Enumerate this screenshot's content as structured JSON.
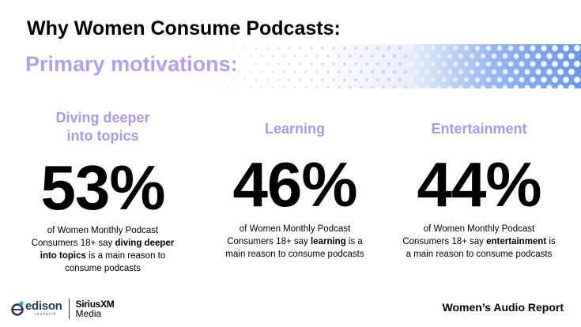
{
  "header": {
    "title": "Why Women Consume Podcasts:",
    "subtitle": "Primary motivations:"
  },
  "colors": {
    "accent_purple": "#a996ee",
    "band_blue": "#5f91eb",
    "text": "#000000"
  },
  "stats": [
    {
      "heading_line1": "Diving deeper",
      "heading_line2": "into topics",
      "value": "53%",
      "desc_pre_line1": "of Women Monthly Podcast",
      "desc_pre_line2": "Consumers 18+ say ",
      "desc_bold_line2": "diving deeper",
      "desc_bold_line3": "into topics",
      "desc_post_line3": " is a main reason to",
      "desc_line4": "consume podcasts"
    },
    {
      "heading": "Learning",
      "value": "46%",
      "desc_line1": "of Women Monthly Podcast",
      "desc_pre_line2": "Consumers 18+ say ",
      "desc_bold_line2": "learning",
      "desc_post_line2": " is a",
      "desc_line3": "main reason to consume podcasts"
    },
    {
      "heading": "Entertainment",
      "value": "44%",
      "desc_line1": "of Women Monthly Podcast",
      "desc_pre_line2": "Consumers 18+ say ",
      "desc_bold_line2": "entertainment",
      "desc_post_line2": " is",
      "desc_line3": "a main reason to consume podcasts"
    }
  ],
  "footer": {
    "edison_name": "edison",
    "edison_sub": "research",
    "sirius_name": "SiriusXM",
    "sirius_sub": "Media",
    "report_name": "Women’s Audio Report",
    "icons": [
      "edison-e-logo-icon",
      "decorative-dot-pattern"
    ]
  }
}
